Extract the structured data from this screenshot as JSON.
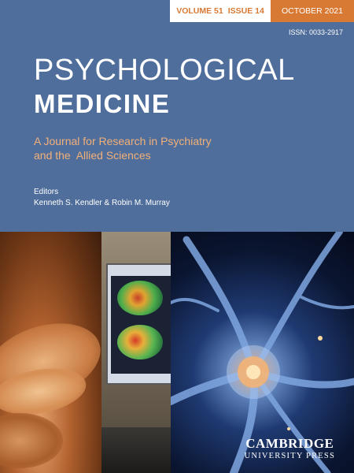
{
  "banner": {
    "volume": "VOLUME 51",
    "issue": "ISSUE 14",
    "date": "OCTOBER 2021"
  },
  "issn": "ISSN: 0033-2917",
  "title": {
    "line1": "PSYCHOLOGICAL",
    "line2": "MEDICINE"
  },
  "subtitle": {
    "line1": "A Journal for Research in Psychiatry",
    "line2": "and the  Allied Sciences"
  },
  "editors": {
    "label": "Editors",
    "names": "Kenneth S. Kendler & Robin M. Murray"
  },
  "publisher": {
    "name": "CAMBRIDGE",
    "sub": "UNIVERSITY PRESS"
  },
  "colors": {
    "background": "#4f6e9b",
    "accent_orange": "#d97a34",
    "subtitle_orange": "#f2b079"
  }
}
